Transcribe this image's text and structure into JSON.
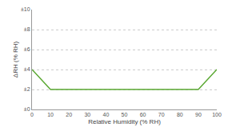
{
  "chart_data": {
    "type": "line",
    "x_label": "Relative Humidity (% RH)",
    "y_label": "ΔRH (% RH)",
    "x": [
      0,
      10,
      90,
      100
    ],
    "values": [
      4,
      2,
      2,
      4
    ],
    "color": "#5aa832",
    "xlim": [
      0,
      100
    ],
    "xticks": [
      0,
      10,
      20,
      30,
      40,
      50,
      60,
      70,
      80,
      90,
      100
    ],
    "ylim": [
      0,
      10
    ],
    "yticks": [
      {
        "value": 0,
        "label": "±0"
      },
      {
        "value": 2,
        "label": "±2"
      },
      {
        "value": 4,
        "label": "±4"
      },
      {
        "value": 6,
        "label": "±6"
      },
      {
        "value": 8,
        "label": "±8"
      },
      {
        "value": 10,
        "label": "±10"
      }
    ],
    "grid": true
  }
}
